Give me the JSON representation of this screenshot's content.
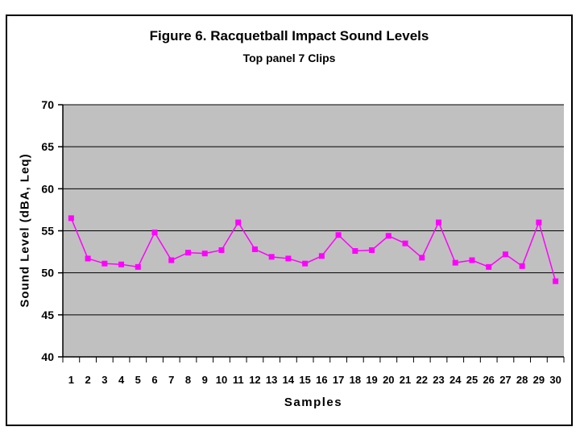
{
  "window": {
    "background": "#ffffff",
    "frame_border_color": "#000000"
  },
  "chart_data": {
    "type": "line",
    "title": "Figure 6. Racquetball Impact Sound Levels",
    "subtitle": "Top panel 7 Clips",
    "xlabel": "Samples",
    "ylabel": "Sound Level (dBA, Leq)",
    "x": [
      1,
      2,
      3,
      4,
      5,
      6,
      7,
      8,
      9,
      10,
      11,
      12,
      13,
      14,
      15,
      16,
      17,
      18,
      19,
      20,
      21,
      22,
      23,
      24,
      25,
      26,
      27,
      28,
      29,
      30
    ],
    "xtick_labels": [
      "1",
      "2",
      "3",
      "4",
      "5",
      "6",
      "7",
      "8",
      "9",
      "10",
      "11",
      "12",
      "13",
      "14",
      "15",
      "16",
      "17",
      "18",
      "19",
      "20",
      "21",
      "22",
      "23",
      "24",
      "25",
      "26",
      "27",
      "28",
      "29",
      "30"
    ],
    "values": [
      56.5,
      51.7,
      51.1,
      51.0,
      50.7,
      54.8,
      51.5,
      52.4,
      52.3,
      52.7,
      56.0,
      52.8,
      51.9,
      51.7,
      51.1,
      52.0,
      54.5,
      52.6,
      52.7,
      54.4,
      53.5,
      51.8,
      56.0,
      51.2,
      51.5,
      50.7,
      52.2,
      50.8,
      56.0,
      49.0
    ],
    "ylim": [
      40,
      70
    ],
    "ytick_interval": 5,
    "ytick_labels": [
      "40",
      "45",
      "50",
      "55",
      "60",
      "65",
      "70"
    ],
    "grid": true,
    "legend": "none",
    "marker": "square",
    "colors": {
      "line": "#FF00FF",
      "marker": "#FF00FF",
      "plot_bg": "#C0C0C0",
      "gridline": "#000000",
      "axis": "#000000",
      "text": "#000000"
    }
  }
}
